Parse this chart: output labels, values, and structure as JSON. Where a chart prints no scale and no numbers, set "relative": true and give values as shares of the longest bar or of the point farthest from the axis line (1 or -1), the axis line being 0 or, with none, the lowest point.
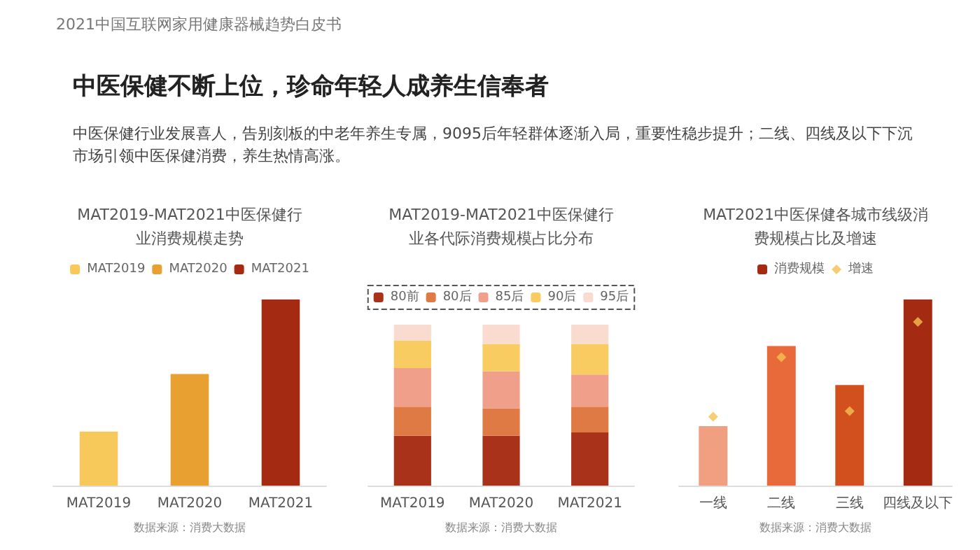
{
  "chart_data": [
    {
      "type": "other",
      "title": "中医保健不断上位，珍命年轻人成养生信奉者",
      "subtitle": "中医保健行业发展喜人，告别刻板的中老年养生专属，9095后年轻群体逐渐入局，重要性稳步提升；二线、四线及以下下沉市场引领中医保健消费，养生热情高涨。",
      "annotations": [
        "2021中国互联网家用健康器械趋势白皮书"
      ]
    },
    {
      "type": "bar",
      "title": "MAT2019-MAT2021中医保健行业消费规模走势",
      "categories": [
        "MAT2019",
        "MAT2020",
        "MAT2021"
      ],
      "relative": true,
      "stacked": true,
      "legend": "top",
      "annotations": [
        "数据来源：消费大数据"
      ],
      "series": [
        {
          "name": "MAT2019",
          "color": "#f6c95a",
          "values": [
            0.29,
            null,
            null
          ]
        },
        {
          "name": "MAT2020",
          "color": "#e8a030",
          "values": [
            null,
            0.6,
            null
          ]
        },
        {
          "name": "MAT2021",
          "color": "#a52a12",
          "values": [
            null,
            null,
            1
          ]
        }
      ]
    },
    {
      "type": "bar",
      "title": "MAT2019-MAT2021中医保健行业各代际消费规模占比分布",
      "categories": [
        "MAT2019",
        "MAT2020",
        "MAT2021"
      ],
      "relative": true,
      "stacked": true,
      "legend": "top",
      "annotations": [
        "数据来源：消费大数据"
      ],
      "series": [
        {
          "name": "80前",
          "color": "#a8321a",
          "values": [
            0.31,
            0.31,
            0.33
          ]
        },
        {
          "name": "80后",
          "color": "#e07a45",
          "values": [
            0.18,
            0.17,
            0.16
          ]
        },
        {
          "name": "85后",
          "color": "#f0a08a",
          "values": [
            0.24,
            0.23,
            0.2
          ]
        },
        {
          "name": "90后",
          "color": "#f8cc60",
          "values": [
            0.17,
            0.17,
            0.19
          ]
        },
        {
          "name": "95后",
          "color": "#f9dccf",
          "values": [
            0.1,
            0.12,
            0.12
          ]
        }
      ]
    },
    {
      "type": "bar",
      "title": "MAT2021中医保健各城市线级消费规模占比及增速",
      "categories": [
        "一线",
        "二线",
        "三线",
        "四线及以下"
      ],
      "relative": true,
      "legend": "top",
      "marker": "diamond",
      "annotations": [
        "数据来源：消费大数据"
      ],
      "series": [
        {
          "name": "消费规模",
          "color": "#a52a12",
          "colors": [
            "#f0a080",
            "#e86a3a",
            "#d2501e",
            "#a52a12"
          ],
          "values": [
            0.32,
            0.75,
            0.54,
            1
          ]
        },
        {
          "name": "增速",
          "type": "scatter",
          "color": "#f5c050",
          "values": [
            0.37,
            0.69,
            0.4,
            0.88
          ]
        }
      ]
    }
  ]
}
